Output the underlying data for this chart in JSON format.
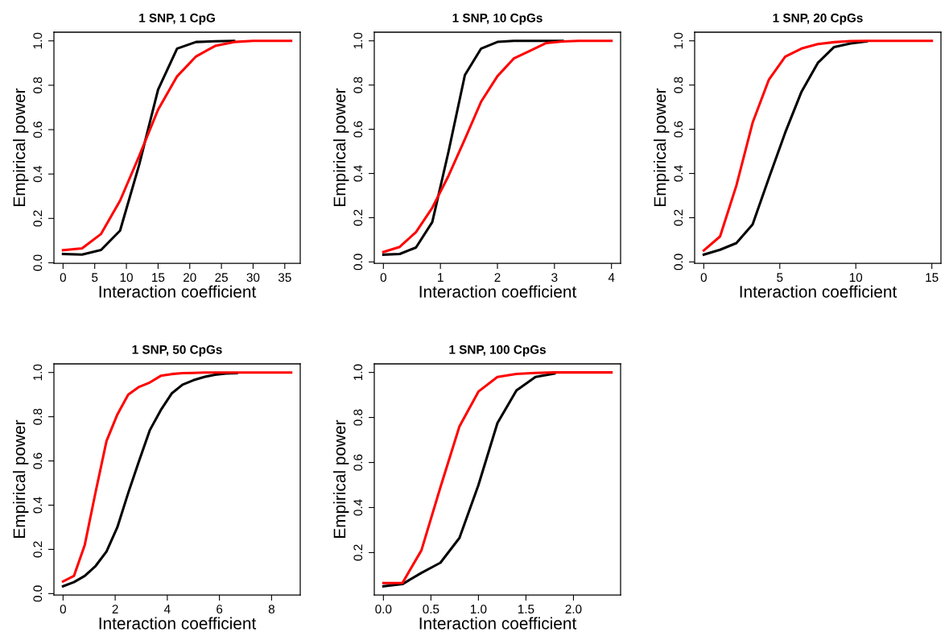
{
  "chart_data": [
    {
      "type": "line",
      "title": "1 SNP, 1 CpG",
      "xlabel": "Interaction coefficient",
      "ylabel": "Empirical power",
      "x": [
        0,
        3,
        6,
        9,
        12,
        15,
        18,
        21,
        24,
        27,
        30,
        33,
        36
      ],
      "xlim": [
        -1.44,
        37.44
      ],
      "xticks": [
        0,
        5,
        10,
        15,
        20,
        25,
        30,
        35
      ],
      "ylim": [
        -0.002,
        1.039
      ],
      "yticks": [
        {
          "value": 0,
          "label": "0.0"
        },
        {
          "value": 0.2,
          "label": "0.2"
        },
        {
          "value": 0.4,
          "label": "0.4"
        },
        {
          "value": 0.6,
          "label": "0.6"
        },
        {
          "value": 0.8,
          "label": "0.8"
        },
        {
          "value": 1,
          "label": "1.0"
        }
      ],
      "grid": false,
      "legend": false,
      "series": [
        {
          "color": "#000000",
          "values": [
            0.04,
            0.037,
            0.058,
            0.145,
            0.44,
            0.78,
            0.965,
            0.995,
            0.998,
            1,
            null,
            null,
            null
          ]
        },
        {
          "color": "#ff0000",
          "values": [
            0.057,
            0.065,
            0.13,
            0.28,
            0.48,
            0.69,
            0.84,
            0.93,
            0.977,
            0.995,
            1,
            1,
            1
          ]
        }
      ]
    },
    {
      "type": "line",
      "title": "1 SNP, 10 CpGs",
      "xlabel": "Interaction coefficient",
      "ylabel": "Empirical power",
      "x": [
        0,
        0.286,
        0.571,
        0.857,
        1.143,
        1.429,
        1.714,
        2.0,
        2.286,
        2.571,
        2.857,
        3.143,
        3.429,
        3.714,
        4.0
      ],
      "xlim": [
        -0.16,
        4.16
      ],
      "xticks": [
        0,
        1,
        2,
        3,
        4
      ],
      "ylim": [
        -0.006,
        1.039
      ],
      "yticks": [
        {
          "value": 0,
          "label": "0.0"
        },
        {
          "value": 0.2,
          "label": "0.2"
        },
        {
          "value": 0.4,
          "label": "0.4"
        },
        {
          "value": 0.6,
          "label": "0.6"
        },
        {
          "value": 0.8,
          "label": "0.8"
        },
        {
          "value": 1,
          "label": "1.0"
        }
      ],
      "grid": false,
      "legend": false,
      "series": [
        {
          "color": "#000000",
          "values": [
            0.033,
            0.036,
            0.065,
            0.18,
            0.5,
            0.845,
            0.965,
            0.995,
            1,
            1,
            1,
            1,
            null,
            null,
            null
          ]
        },
        {
          "color": "#ff0000",
          "values": [
            0.045,
            0.068,
            0.135,
            0.245,
            0.39,
            0.555,
            0.725,
            0.84,
            0.92,
            0.955,
            0.99,
            0.997,
            1,
            1,
            1
          ]
        }
      ]
    },
    {
      "type": "line",
      "title": "1 SNP, 20 CpGs",
      "xlabel": "Interaction coefficient",
      "ylabel": "Empirical power",
      "x": [
        0,
        1.071,
        2.143,
        3.214,
        4.286,
        5.357,
        6.429,
        7.5,
        8.571,
        9.643,
        10.714,
        11.786,
        12.857,
        13.929,
        15
      ],
      "xlim": [
        -0.6,
        15.6
      ],
      "xticks": [
        0,
        5,
        10,
        15
      ],
      "ylim": [
        -0.006,
        1.039
      ],
      "yticks": [
        {
          "value": 0,
          "label": "0.0"
        },
        {
          "value": 0.2,
          "label": "0.2"
        },
        {
          "value": 0.4,
          "label": "0.4"
        },
        {
          "value": 0.6,
          "label": "0.6"
        },
        {
          "value": 0.8,
          "label": "0.8"
        },
        {
          "value": 1,
          "label": "1.0"
        }
      ],
      "grid": false,
      "legend": false,
      "series": [
        {
          "color": "#000000",
          "values": [
            0.033,
            0.055,
            0.085,
            0.17,
            0.38,
            0.585,
            0.77,
            0.9,
            0.972,
            0.988,
            0.997,
            null,
            null,
            null,
            null
          ]
        },
        {
          "color": "#ff0000",
          "values": [
            0.052,
            0.115,
            0.345,
            0.63,
            0.825,
            0.928,
            0.965,
            0.985,
            0.994,
            0.999,
            1,
            1,
            1,
            1,
            1
          ]
        }
      ]
    },
    {
      "type": "line",
      "title": "1 SNP, 50 CpGs",
      "xlabel": "Interaction coefficient",
      "ylabel": "Empirical power",
      "x": [
        0,
        0.417,
        0.833,
        1.25,
        1.667,
        2.083,
        2.5,
        2.917,
        3.333,
        3.75,
        4.167,
        4.583,
        5.0,
        5.417,
        5.833,
        6.25,
        6.667,
        7.083,
        7.5,
        7.917,
        8.333,
        8.75
      ],
      "xlim": [
        -0.35,
        9.1
      ],
      "xticks": [
        0,
        2,
        4,
        6,
        8
      ],
      "ylim": [
        -0.006,
        1.039
      ],
      "yticks": [
        {
          "value": 0,
          "label": "0.0"
        },
        {
          "value": 0.2,
          "label": "0.2"
        },
        {
          "value": 0.4,
          "label": "0.4"
        },
        {
          "value": 0.6,
          "label": "0.6"
        },
        {
          "value": 0.8,
          "label": "0.8"
        },
        {
          "value": 1,
          "label": "1.0"
        }
      ],
      "grid": false,
      "legend": false,
      "series": [
        {
          "color": "#000000",
          "values": [
            0.033,
            0.052,
            0.08,
            0.125,
            0.19,
            0.3,
            0.455,
            0.6,
            0.74,
            0.83,
            0.905,
            0.945,
            0.965,
            0.98,
            0.99,
            0.995,
            0.997,
            null,
            null,
            null,
            null,
            null
          ]
        },
        {
          "color": "#ff0000",
          "values": [
            0.055,
            0.08,
            0.22,
            0.46,
            0.69,
            0.81,
            0.9,
            0.935,
            0.955,
            0.985,
            0.993,
            0.997,
            0.998,
            1,
            1,
            1,
            1,
            1,
            1,
            1,
            1,
            1
          ]
        }
      ]
    },
    {
      "type": "line",
      "title": "1 SNP, 100 CpGs",
      "xlabel": "Interaction coefficient",
      "ylabel": "Empirical power",
      "x": [
        0,
        0.2,
        0.4,
        0.6,
        0.8,
        1.0,
        1.2,
        1.4,
        1.6,
        1.8,
        2.0,
        2.2,
        2.4
      ],
      "xlim": [
        -0.096,
        2.496
      ],
      "xticks": [
        {
          "value": 0,
          "label": "0.0"
        },
        {
          "value": 0.5,
          "label": "0.5"
        },
        {
          "value": 1,
          "label": "1.0"
        },
        {
          "value": 1.5,
          "label": "1.5"
        },
        {
          "value": 2,
          "label": "2.0"
        }
      ],
      "ylim": [
        0.012,
        1.038
      ],
      "yticks": [
        {
          "value": 0.2,
          "label": "0.2"
        },
        {
          "value": 0.4,
          "label": "0.4"
        },
        {
          "value": 0.6,
          "label": "0.6"
        },
        {
          "value": 0.8,
          "label": "0.8"
        },
        {
          "value": 1,
          "label": "1.0"
        }
      ],
      "grid": false,
      "legend": false,
      "series": [
        {
          "color": "#000000",
          "values": [
            0.05,
            0.06,
            0.11,
            0.155,
            0.265,
            0.5,
            0.775,
            0.92,
            0.98,
            0.995,
            null,
            null,
            null
          ]
        },
        {
          "color": "#ff0000",
          "values": [
            0.065,
            0.065,
            0.21,
            0.49,
            0.76,
            0.915,
            0.98,
            0.993,
            0.998,
            1,
            1,
            1,
            1
          ]
        }
      ]
    }
  ]
}
